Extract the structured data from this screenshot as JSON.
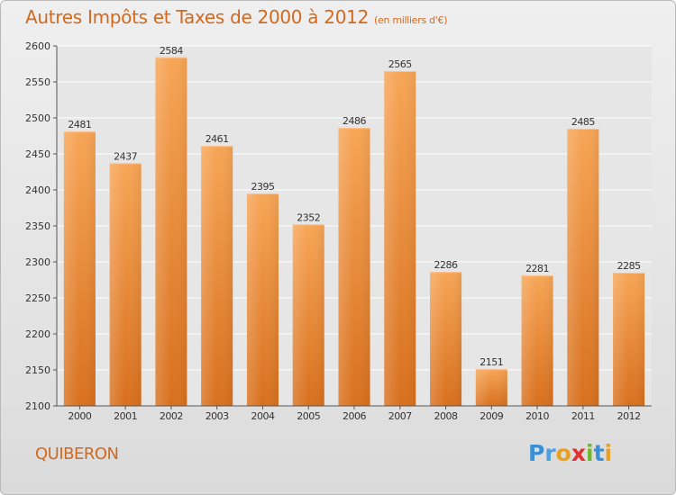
{
  "header": {
    "title": "Autres Impôts et Taxes de 2000 à 2012",
    "subtitle": "(en milliers d'€)"
  },
  "footer": {
    "city": "QUIBERON",
    "logo": "Proxiti"
  },
  "colors": {
    "bar_light": "#f7a556",
    "bar_dark": "#d8701e",
    "accent": "#d2691e"
  },
  "chart_data": {
    "type": "bar",
    "title": "Autres Impôts et Taxes de 2000 à 2012",
    "subtitle": "(en milliers d'€)",
    "categories": [
      "2000",
      "2001",
      "2002",
      "2003",
      "2004",
      "2005",
      "2006",
      "2007",
      "2008",
      "2009",
      "2010",
      "2011",
      "2012"
    ],
    "values": [
      2481,
      2437,
      2584,
      2461,
      2395,
      2352,
      2486,
      2565,
      2286,
      2151,
      2281,
      2485,
      2285
    ],
    "ylim": [
      2100,
      2600
    ],
    "yticks": [
      2100,
      2150,
      2200,
      2250,
      2300,
      2350,
      2400,
      2450,
      2500,
      2550,
      2600
    ],
    "grid": true,
    "xlabel": "",
    "ylabel": ""
  }
}
